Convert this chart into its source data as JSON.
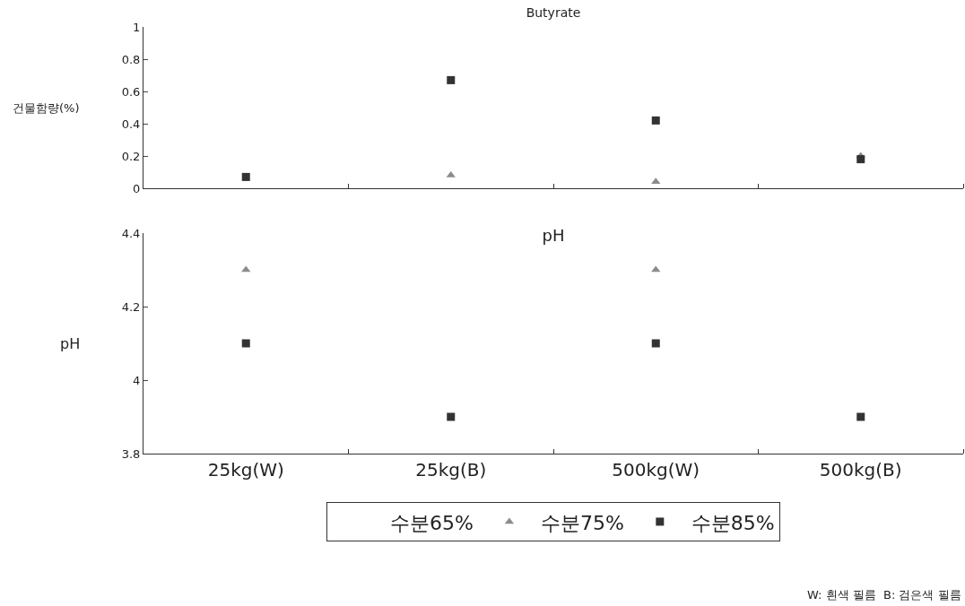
{
  "chart_data": [
    {
      "type": "scatter",
      "title": "Butyrate",
      "ylabel": "건물함량(%)",
      "categories": [
        null,
        null,
        null,
        null
      ],
      "ylim": [
        0,
        1
      ],
      "yticks": [
        0,
        0.2,
        0.4,
        0.6,
        0.8,
        1
      ],
      "grid": false,
      "tick_labels": "y",
      "series": [
        {
          "marker": "triangle",
          "color": "#8c8c8c",
          "values": [
            null,
            0.08,
            0.04,
            0.2
          ]
        },
        {
          "marker": "square",
          "color": "#333333",
          "values": [
            0.07,
            0.67,
            0.42,
            0.18
          ]
        }
      ]
    },
    {
      "type": "scatter",
      "title": "pH",
      "ylabel": "pH",
      "categories": [
        "25kg(W)",
        "25kg(B)",
        "500kg(W)",
        "500kg(B)"
      ],
      "ylim": [
        3.8,
        4.4
      ],
      "yticks": [
        3.8,
        4,
        4.2,
        4.4
      ],
      "grid": false,
      "legend": "bottom",
      "annotations": [
        "W: 흰색 필름  B: 검은색 필름"
      ],
      "series": [
        {
          "name": "수분65%",
          "marker": "none",
          "values": [
            null,
            null,
            null,
            null
          ]
        },
        {
          "name": "수분75%",
          "marker": "triangle",
          "color": "#8c8c8c",
          "values": [
            4.3,
            null,
            4.3,
            null
          ]
        },
        {
          "name": "수분85%",
          "marker": "square",
          "color": "#333333",
          "values": [
            4.1,
            3.9,
            4.1,
            3.9
          ]
        }
      ]
    }
  ]
}
